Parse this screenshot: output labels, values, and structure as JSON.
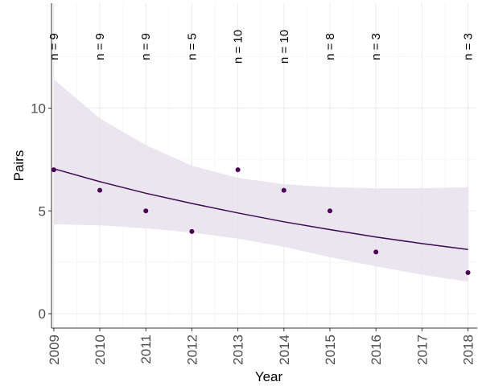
{
  "chart_data": {
    "type": "scatter",
    "xlabel": "Year",
    "ylabel": "Pairs",
    "xlim": [
      2008.95,
      2018.2
    ],
    "ylim": [
      -0.7,
      15.1
    ],
    "x_ticks": [
      2009,
      2010,
      2011,
      2012,
      2013,
      2014,
      2015,
      2016,
      2017,
      2018
    ],
    "x_tick_labels": [
      "2009",
      "2010",
      "2011",
      "2012",
      "2013",
      "2014",
      "2015",
      "2016",
      "2017",
      "2018"
    ],
    "y_ticks": [
      0,
      5,
      10
    ],
    "y_tick_labels": [
      "0",
      "5",
      "10"
    ],
    "grid": true,
    "points": {
      "x": [
        2009,
        2010,
        2011,
        2012,
        2013,
        2014,
        2015,
        2016,
        2018
      ],
      "y": [
        7,
        6,
        5,
        4,
        7,
        6,
        5,
        3,
        2
      ]
    },
    "fit": {
      "x": [
        2009,
        2010,
        2011,
        2012,
        2013,
        2014,
        2015,
        2016,
        2017,
        2018
      ],
      "y": [
        7.05,
        6.42,
        5.86,
        5.36,
        4.9,
        4.47,
        4.09,
        3.73,
        3.41,
        3.12
      ]
    },
    "ribbon": {
      "x": [
        2009,
        2010,
        2011,
        2012,
        2013,
        2014,
        2015,
        2016,
        2017,
        2018
      ],
      "lower": [
        4.35,
        4.3,
        4.15,
        3.95,
        3.65,
        3.25,
        2.75,
        2.3,
        1.9,
        1.55
      ],
      "upper": [
        11.4,
        9.5,
        8.2,
        7.2,
        6.6,
        6.3,
        6.15,
        6.1,
        6.1,
        6.15
      ]
    },
    "annotations": [
      {
        "x": 2009,
        "text": "n = 9"
      },
      {
        "x": 2010,
        "text": "n = 9"
      },
      {
        "x": 2011,
        "text": "n = 9"
      },
      {
        "x": 2012,
        "text": "n = 5"
      },
      {
        "x": 2013,
        "text": "n = 10"
      },
      {
        "x": 2014,
        "text": "n = 10"
      },
      {
        "x": 2015,
        "text": "n = 8"
      },
      {
        "x": 2016,
        "text": "n = 3"
      },
      {
        "x": 2018,
        "text": "n = 3"
      }
    ],
    "colors": {
      "points": "#4b0055",
      "line": "#3b0a4f",
      "ribbon": "#e6e0ec",
      "grid": "#ebebeb",
      "axis": "#333333"
    }
  }
}
